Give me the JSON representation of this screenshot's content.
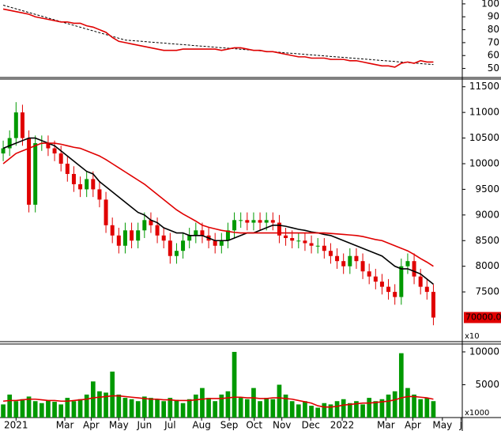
{
  "chart_data": [
    {
      "type": "line",
      "ylim": [
        43,
        103
      ],
      "yticks": [
        50,
        60,
        70,
        80,
        90,
        100
      ],
      "series": [
        {
          "color": "#e00000",
          "values": [
            96,
            95,
            94,
            93,
            92,
            90,
            89,
            88,
            87,
            86,
            86,
            85,
            85,
            83,
            82,
            80,
            78,
            74,
            71,
            70,
            69,
            68,
            67,
            66,
            65,
            64,
            64,
            64,
            65,
            65,
            65,
            65,
            65,
            65,
            64,
            65,
            66,
            66,
            65,
            64,
            64,
            63,
            63,
            62,
            61,
            60,
            59,
            59,
            58,
            58,
            58,
            57,
            57,
            57,
            56,
            56,
            55,
            54,
            53,
            52,
            52,
            51,
            54,
            55,
            54,
            56,
            55,
            55
          ]
        }
      ],
      "trendline": {
        "color": "#000000",
        "dashed": true,
        "x": [
          0,
          19,
          67
        ],
        "values": [
          99,
          72,
          53
        ]
      }
    },
    {
      "type": "candlestick",
      "ylim": [
        6530,
        11650
      ],
      "yticks": [
        7500,
        8000,
        8500,
        9000,
        9500,
        10000,
        10500,
        11000,
        11500
      ],
      "up_color": "#009900",
      "down_color": "#e00000",
      "last_price_label": "70000.00",
      "scale_label": "x10",
      "open": [
        10200,
        10300,
        10500,
        11000,
        10500,
        9200,
        10400,
        10400,
        10300,
        10200,
        10000,
        9800,
        9600,
        9500,
        9700,
        9500,
        9300,
        8800,
        8600,
        8400,
        8700,
        8500,
        8700,
        8900,
        8800,
        8600,
        8500,
        8200,
        8300,
        8500,
        8600,
        8700,
        8600,
        8500,
        8400,
        8500,
        8700,
        8900,
        8900,
        8850,
        8900,
        8850,
        8900,
        8850,
        8600,
        8550,
        8500,
        8500,
        8450,
        8400,
        8400,
        8300,
        8200,
        8100,
        8000,
        8200,
        8100,
        7900,
        7800,
        7700,
        7600,
        7500,
        7400,
        8000,
        8100,
        7800,
        7600,
        7500
      ],
      "high": [
        10450,
        10650,
        11200,
        11150,
        10650,
        10550,
        10550,
        10550,
        10450,
        10350,
        10150,
        9950,
        9750,
        9850,
        9850,
        9650,
        9450,
        8950,
        8750,
        8850,
        8850,
        8850,
        9050,
        9050,
        8950,
        8750,
        8650,
        8450,
        8650,
        8750,
        8850,
        8850,
        8750,
        8650,
        8650,
        8850,
        9050,
        9050,
        9050,
        9050,
        9050,
        9050,
        9050,
        9000,
        8750,
        8700,
        8650,
        8650,
        8600,
        8550,
        8550,
        8450,
        8350,
        8250,
        8350,
        8350,
        8250,
        8050,
        7950,
        7850,
        7750,
        7650,
        8150,
        8250,
        8250,
        7950,
        7750,
        7650
      ],
      "low": [
        10050,
        10150,
        10350,
        10350,
        9050,
        9050,
        10250,
        10150,
        10050,
        9850,
        9650,
        9450,
        9350,
        9350,
        9350,
        9150,
        8650,
        8450,
        8250,
        8250,
        8350,
        8350,
        8550,
        8650,
        8450,
        8350,
        8050,
        8050,
        8150,
        8350,
        8450,
        8450,
        8350,
        8250,
        8250,
        8350,
        8550,
        8750,
        8700,
        8700,
        8700,
        8700,
        8700,
        8450,
        8400,
        8350,
        8350,
        8300,
        8250,
        8250,
        8150,
        8050,
        7950,
        7850,
        7850,
        7950,
        7750,
        7650,
        7550,
        7450,
        7350,
        7250,
        7250,
        7850,
        7650,
        7450,
        7350,
        6850
      ],
      "close": [
        10300,
        10500,
        11000,
        10500,
        9200,
        10400,
        10400,
        10300,
        10200,
        10000,
        9800,
        9600,
        9500,
        9700,
        9500,
        9300,
        8800,
        8600,
        8400,
        8700,
        8500,
        8700,
        8900,
        8800,
        8600,
        8500,
        8200,
        8300,
        8500,
        8600,
        8700,
        8600,
        8500,
        8400,
        8500,
        8700,
        8900,
        8900,
        8850,
        8900,
        8850,
        8900,
        8850,
        8600,
        8550,
        8500,
        8500,
        8450,
        8400,
        8400,
        8300,
        8200,
        8100,
        8000,
        8200,
        8100,
        7900,
        7800,
        7700,
        7600,
        7500,
        7400,
        8000,
        8100,
        7800,
        7600,
        7500,
        7000
      ],
      "series": [
        {
          "color": "#000000",
          "values": [
            10300,
            10350,
            10400,
            10450,
            10500,
            10500,
            10450,
            10400,
            10350,
            10250,
            10150,
            10050,
            9950,
            9850,
            9800,
            9650,
            9550,
            9450,
            9350,
            9250,
            9150,
            9050,
            9000,
            8900,
            8850,
            8750,
            8700,
            8650,
            8650,
            8600,
            8600,
            8600,
            8550,
            8500,
            8500,
            8500,
            8550,
            8600,
            8650,
            8650,
            8700,
            8750,
            8800,
            8800,
            8780,
            8750,
            8720,
            8700,
            8670,
            8650,
            8620,
            8600,
            8550,
            8500,
            8450,
            8400,
            8350,
            8300,
            8250,
            8200,
            8100,
            8000,
            7950,
            7950,
            7900,
            7850,
            7750,
            7650
          ]
        },
        {
          "color": "#e00000",
          "values": [
            10000,
            10100,
            10200,
            10250,
            10300,
            10350,
            10400,
            10400,
            10400,
            10380,
            10350,
            10320,
            10300,
            10250,
            10200,
            10150,
            10080,
            10000,
            9920,
            9840,
            9760,
            9680,
            9600,
            9500,
            9400,
            9300,
            9200,
            9100,
            9020,
            8950,
            8880,
            8800,
            8760,
            8730,
            8700,
            8680,
            8660,
            8650,
            8650,
            8650,
            8650,
            8650,
            8650,
            8650,
            8650,
            8650,
            8650,
            8650,
            8650,
            8650,
            8650,
            8640,
            8630,
            8620,
            8610,
            8600,
            8580,
            8550,
            8520,
            8500,
            8450,
            8400,
            8350,
            8300,
            8230,
            8150,
            8080,
            8000
          ]
        }
      ]
    },
    {
      "type": "bar",
      "ylim": [
        0,
        11200
      ],
      "yticks": [
        5000,
        10000
      ],
      "color": "#009900",
      "scale_label": "x1000",
      "x": [
        0,
        1,
        2,
        3,
        4,
        5,
        6,
        7,
        8,
        9,
        10,
        11,
        12,
        13,
        14,
        15,
        16,
        17,
        18,
        19,
        20,
        21,
        22,
        23,
        24,
        25,
        26,
        27,
        28,
        29,
        30,
        31,
        32,
        33,
        34,
        35,
        36,
        37,
        38,
        39,
        40,
        41,
        42,
        43,
        44,
        45,
        46,
        47,
        48,
        49,
        50,
        51,
        52,
        53,
        54,
        55,
        56,
        57,
        58,
        59,
        60,
        61,
        62,
        63,
        64,
        65,
        66,
        67
      ],
      "xlim": [
        -0.5,
        71.5
      ],
      "xticks": [
        {
          "value": 2,
          "label": "2021"
        },
        {
          "value": 9.6,
          "label": "Mar"
        },
        {
          "value": 13.7,
          "label": "Apr"
        },
        {
          "value": 18,
          "label": "May"
        },
        {
          "value": 22,
          "label": "Jun"
        },
        {
          "value": 26,
          "label": "Jul"
        },
        {
          "value": 30.9,
          "label": "Aug"
        },
        {
          "value": 35.2,
          "label": "Sep"
        },
        {
          "value": 39.1,
          "label": "Oct"
        },
        {
          "value": 43.4,
          "label": "Nov"
        },
        {
          "value": 47.9,
          "label": "Dec"
        },
        {
          "value": 52.8,
          "label": "2022"
        },
        {
          "value": 59.6,
          "label": "Mar"
        },
        {
          "value": 63.8,
          "label": "Apr"
        },
        {
          "value": 68.4,
          "label": "May"
        },
        {
          "value": 71.3,
          "label": "J"
        }
      ],
      "values": [
        2000,
        3500,
        2500,
        2800,
        3200,
        2500,
        2200,
        2600,
        2400,
        2000,
        3000,
        2500,
        2800,
        3500,
        5500,
        4000,
        3800,
        7000,
        3500,
        3000,
        2800,
        2500,
        3200,
        3000,
        2800,
        2500,
        3000,
        2700,
        2200,
        2800,
        3500,
        4500,
        3000,
        2500,
        3500,
        4000,
        10000,
        3000,
        2800,
        4500,
        2500,
        3000,
        2800,
        5000,
        3500,
        2500,
        2000,
        2500,
        1800,
        1500,
        2200,
        2000,
        2500,
        2800,
        2200,
        2500,
        2000,
        3000,
        2500,
        2800,
        3500,
        4000,
        9800,
        4500,
        3500,
        2800,
        3000,
        2500
      ],
      "series": [
        {
          "color": "#e00000",
          "values": [
            2500,
            2600,
            2600,
            2700,
            2800,
            2800,
            2700,
            2600,
            2600,
            2500,
            2500,
            2600,
            2700,
            2800,
            3000,
            3100,
            3200,
            3300,
            3300,
            3200,
            3100,
            3000,
            2900,
            2800,
            2800,
            2700,
            2700,
            2600,
            2600,
            2600,
            2700,
            2800,
            2900,
            2900,
            2900,
            3000,
            3100,
            3100,
            3000,
            3000,
            2900,
            2900,
            3000,
            3000,
            2900,
            2800,
            2600,
            2400,
            2200,
            1800,
            1600,
            1600,
            1700,
            1900,
            2000,
            2100,
            2200,
            2200,
            2300,
            2400,
            2500,
            2700,
            3000,
            3200,
            3200,
            3100,
            3000,
            2800
          ]
        }
      ]
    }
  ]
}
